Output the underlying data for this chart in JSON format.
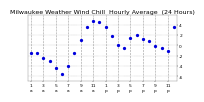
{
  "title": "Milwaukee Weather Wind Chill  Hourly Average  (24 Hours)",
  "hours": [
    1,
    2,
    3,
    4,
    5,
    6,
    7,
    8,
    9,
    10,
    11,
    12,
    13,
    14,
    15,
    16,
    17,
    18,
    19,
    20,
    21,
    22,
    23,
    24
  ],
  "wind_chill": [
    -1.5,
    -1.4,
    -2.5,
    -3.0,
    -4.5,
    -5.5,
    -4.0,
    -1.5,
    1.0,
    3.5,
    4.8,
    4.5,
    3.5,
    1.8,
    0.0,
    -0.5,
    1.5,
    2.0,
    1.2,
    0.8,
    -0.2,
    -0.5,
    -1.0,
    3.5
  ],
  "dot_color": "#0000dd",
  "bg_color": "#ffffff",
  "grid_color": "#999999",
  "ylim": [
    -7,
    6
  ],
  "xlim": [
    0.5,
    24.5
  ],
  "ytick_values": [
    -6,
    -4,
    -2,
    0,
    2,
    4
  ],
  "ytick_labels": [
    "-6",
    "-4",
    "-2",
    "0",
    "2",
    "4"
  ],
  "xtick_hours": [
    1,
    3,
    5,
    7,
    9,
    11,
    13,
    15,
    17,
    19,
    21,
    23
  ],
  "xtick_labels": [
    "1",
    "3",
    "5",
    "7",
    "9",
    "11",
    "1",
    "3",
    "5",
    "7",
    "9",
    "11"
  ],
  "xtick_labels2": [
    "a",
    "a",
    "a",
    "a",
    "a",
    "a",
    "p",
    "p",
    "p",
    "p",
    "p",
    "p"
  ],
  "vline_hours": [
    1,
    3,
    5,
    7,
    9,
    11,
    13,
    15,
    17,
    19,
    21,
    23
  ],
  "title_fontsize": 4.5,
  "tick_fontsize": 3.2,
  "dot_size": 1.8
}
